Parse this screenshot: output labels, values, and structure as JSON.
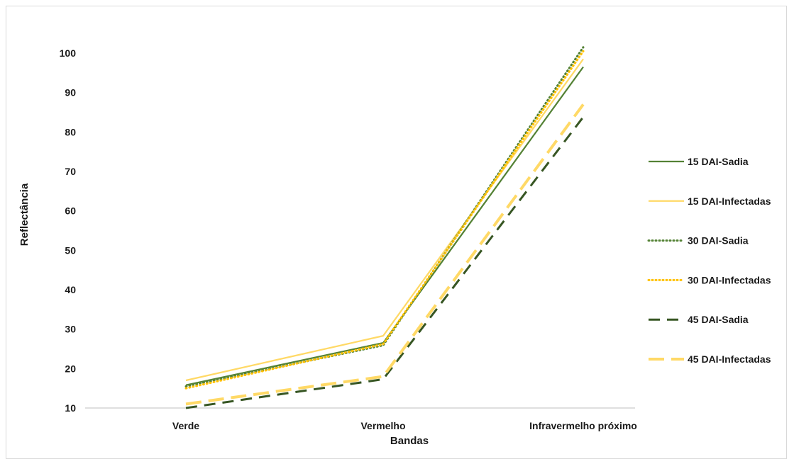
{
  "chart_data": {
    "type": "line",
    "xlabel": "Bandas",
    "ylabel": "Reflectância",
    "categories": [
      "Verde",
      "Vermelho",
      "Infravermelho próximo"
    ],
    "ylim": [
      10,
      100
    ],
    "yticks": [
      10,
      20,
      30,
      40,
      50,
      60,
      70,
      80,
      90,
      100
    ],
    "grid": false,
    "legend_position": "right",
    "series": [
      {
        "name": "15 DAI-Sadia",
        "values": [
          15.8,
          26.5,
          96.5
        ],
        "color": "#548235",
        "dash": "solid"
      },
      {
        "name": "15 DAI-Infectadas",
        "values": [
          17.0,
          28.3,
          98.5
        ],
        "color": "#ffd966",
        "dash": "solid"
      },
      {
        "name": "30 DAI-Sadia",
        "values": [
          15.5,
          25.9,
          101.5
        ],
        "color": "#548235",
        "dash": "dotted"
      },
      {
        "name": "30 DAI-Infectadas",
        "values": [
          15.0,
          26.2,
          100.5
        ],
        "color": "#ffc000",
        "dash": "dotted"
      },
      {
        "name": "45 DAI-Sadia",
        "values": [
          10.0,
          17.3,
          83.8
        ],
        "color": "#375623",
        "dash": "dashed"
      },
      {
        "name": "45 DAI-Infectadas",
        "values": [
          11.0,
          18.0,
          87.0
        ],
        "color": "#ffd966",
        "dash": "longdash"
      }
    ]
  }
}
